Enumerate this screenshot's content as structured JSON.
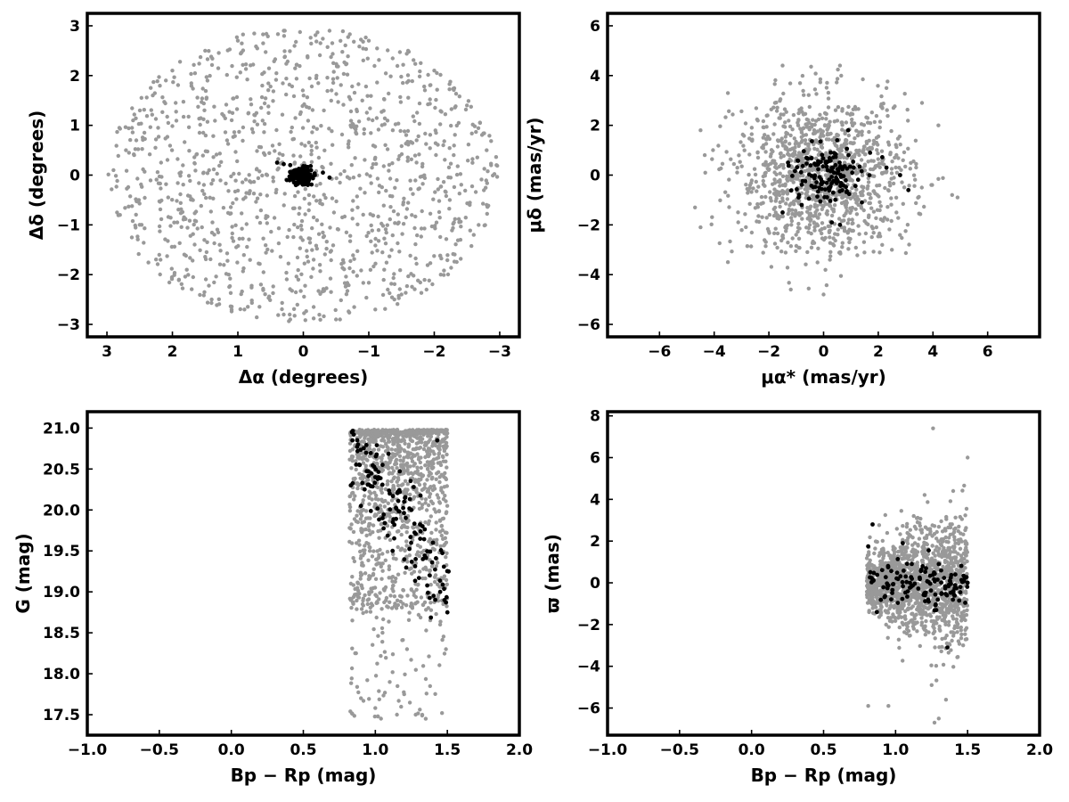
{
  "colors": {
    "field_stars": "#999999",
    "members": "#000000",
    "axes": "#000000"
  },
  "chart_data": [
    {
      "type": "scatter",
      "id": "panel-sky",
      "xlabel": "Δα (degrees)",
      "ylabel": "Δδ (degrees)",
      "xlim": [
        3.3,
        -3.3
      ],
      "ylim": [
        -3.25,
        3.25
      ],
      "x_reversed": true,
      "xticks": [
        3,
        2,
        1,
        0,
        -1,
        -2,
        -3
      ],
      "xtick_labels": [
        "3",
        "2",
        "1",
        "0",
        "−1",
        "−2",
        "−3"
      ],
      "yticks": [
        -3,
        -2,
        -1,
        0,
        1,
        2,
        3
      ],
      "ytick_labels": [
        "−3",
        "−2",
        "−1",
        "0",
        "1",
        "2",
        "3"
      ],
      "grid": false,
      "series": [
        {
          "role": "field",
          "distribution": "uniform disk, radius ≈ 3 deg, ~1200 points",
          "points": [
            [
              2.9,
              0.1
            ],
            [
              2.8,
              -0.8
            ],
            [
              2.6,
              1.1
            ],
            [
              2.5,
              -1.0
            ],
            [
              2.3,
              1.6
            ],
            [
              2.2,
              -1.6
            ],
            [
              2.0,
              2.1
            ],
            [
              1.9,
              -2.1
            ],
            [
              1.5,
              2.5
            ],
            [
              1.4,
              -2.5
            ],
            [
              1.0,
              2.7
            ],
            [
              0.9,
              -2.7
            ],
            [
              0.3,
              2.9
            ],
            [
              0.2,
              -2.9
            ],
            [
              -0.4,
              2.9
            ],
            [
              -0.5,
              -2.9
            ],
            [
              -1.0,
              2.7
            ],
            [
              -1.1,
              -2.7
            ],
            [
              -1.6,
              2.5
            ],
            [
              -1.5,
              -2.4
            ],
            [
              -2.0,
              2.1
            ],
            [
              -2.1,
              -2.0
            ],
            [
              -2.5,
              1.4
            ],
            [
              -2.4,
              -1.3
            ],
            [
              -2.8,
              0.5
            ],
            [
              -2.8,
              -0.6
            ],
            [
              -2.95,
              0.2
            ]
          ]
        },
        {
          "role": "members",
          "distribution": "compact clump centred near (0,0), σ ≈ 0.1 deg, ~150 points",
          "points": [
            [
              0.4,
              0.25
            ],
            [
              0.3,
              0.22
            ],
            [
              0.2,
              0.2
            ],
            [
              0.0,
              0.18
            ],
            [
              -0.3,
              0.05
            ],
            [
              -0.4,
              -0.05
            ],
            [
              0.25,
              -0.1
            ],
            [
              0.1,
              -0.15
            ],
            [
              -0.1,
              -0.05
            ],
            [
              0.05,
              0.05
            ]
          ]
        }
      ]
    },
    {
      "type": "scatter",
      "id": "panel-pm",
      "xlabel": "μα* (mas/yr)",
      "ylabel": "μδ (mas/yr)",
      "xlim": [
        -7.9,
        7.9
      ],
      "ylim": [
        -6.5,
        6.5
      ],
      "xticks": [
        -6,
        -4,
        -2,
        0,
        2,
        4,
        6
      ],
      "xtick_labels": [
        "−6",
        "−4",
        "−2",
        "0",
        "2",
        "4",
        "6"
      ],
      "yticks": [
        -6,
        -4,
        -2,
        0,
        2,
        4,
        6
      ],
      "ytick_labels": [
        "−6",
        "−4",
        "−2",
        "0",
        "2",
        "4",
        "6"
      ],
      "grid": false,
      "series": [
        {
          "role": "field",
          "distribution": "disk centred at (0,0), radius ≈ 4.6 mas/yr, dense core, ~1200 points",
          "points": [
            [
              -4.7,
              -1.3
            ],
            [
              -4.5,
              1.8
            ],
            [
              -4.5,
              -2.1
            ],
            [
              -3.5,
              3.3
            ],
            [
              -3.5,
              -3.5
            ],
            [
              -1.5,
              4.4
            ],
            [
              -1.2,
              -4.6
            ],
            [
              0.6,
              4.4
            ],
            [
              0.0,
              -4.8
            ],
            [
              2.3,
              3.5
            ],
            [
              2.5,
              -3.0
            ],
            [
              3.6,
              2.9
            ],
            [
              4.2,
              2.0
            ],
            [
              4.9,
              -0.9
            ],
            [
              4.7,
              -0.8
            ]
          ]
        },
        {
          "role": "members",
          "distribution": "clump near (0,0), σ ≈ 0.9 mas/yr, ~150 points",
          "points": [
            [
              -1.5,
              -1.5
            ],
            [
              -1.3,
              0.5
            ],
            [
              -0.8,
              -1.2
            ],
            [
              0.3,
              -1.9
            ],
            [
              0.5,
              -0.2
            ],
            [
              0.5,
              1.4
            ],
            [
              0.6,
              -2.0
            ],
            [
              0.9,
              1.8
            ],
            [
              1.1,
              0.3
            ],
            [
              1.4,
              -1.1
            ],
            [
              1.7,
              0.9
            ],
            [
              2.3,
              0.3
            ],
            [
              2.8,
              0.0
            ],
            [
              3.1,
              -0.6
            ]
          ]
        }
      ]
    },
    {
      "type": "scatter",
      "id": "panel-cmd",
      "xlabel": "Bp − Rp (mag)",
      "ylabel": "G (mag)",
      "xlim": [
        -1.0,
        2.0
      ],
      "ylim": [
        17.25,
        21.2
      ],
      "xticks": [
        -1.0,
        -0.5,
        0.0,
        0.5,
        1.0,
        1.5,
        2.0
      ],
      "xtick_labels": [
        "−1.0",
        "−0.5",
        "0.0",
        "0.5",
        "1.0",
        "1.5",
        "2.0"
      ],
      "yticks": [
        17.5,
        18.0,
        18.5,
        19.0,
        19.5,
        20.0,
        20.5,
        21.0
      ],
      "ytick_labels": [
        "17.5",
        "18.0",
        "18.5",
        "19.0",
        "19.5",
        "20.0",
        "20.5",
        "21.0"
      ],
      "grid": false,
      "series": [
        {
          "role": "field",
          "distribution": "Bp−Rp 0.82–1.50, G 17.4–21.0, dense near G 19.5–21.0, ~1200 points",
          "points": [
            [
              0.84,
              18.65
            ],
            [
              0.86,
              18.25
            ],
            [
              0.9,
              17.7
            ],
            [
              1.05,
              18.5
            ],
            [
              1.1,
              17.9
            ],
            [
              1.15,
              17.5
            ],
            [
              1.2,
              17.75
            ],
            [
              1.22,
              18.3
            ],
            [
              1.28,
              17.5
            ],
            [
              1.35,
              17.45
            ],
            [
              1.38,
              17.85
            ],
            [
              1.45,
              18.6
            ],
            [
              1.49,
              18.3
            ]
          ]
        },
        {
          "role": "members",
          "distribution": "diagonal sequence from (0.85, 20.9) to (1.5, 18.75), ~150 points",
          "points": [
            [
              0.83,
              20.3
            ],
            [
              0.85,
              20.92
            ],
            [
              0.88,
              20.8
            ],
            [
              0.9,
              20.05
            ],
            [
              1.0,
              20.4
            ],
            [
              1.05,
              20.55
            ],
            [
              1.05,
              19.9
            ],
            [
              1.1,
              20.2
            ],
            [
              1.12,
              19.5
            ],
            [
              1.2,
              20.1
            ],
            [
              1.25,
              20.0
            ],
            [
              1.28,
              19.4
            ],
            [
              1.33,
              19.4
            ],
            [
              1.4,
              19.6
            ],
            [
              1.43,
              20.85
            ],
            [
              1.45,
              19.0
            ],
            [
              1.48,
              18.9
            ],
            [
              1.5,
              18.75
            ]
          ]
        }
      ]
    },
    {
      "type": "scatter",
      "id": "panel-plx",
      "xlabel": "Bp − Rp (mag)",
      "ylabel": "ϖ (mas)",
      "xlim": [
        -1.0,
        2.0
      ],
      "ylim": [
        -7.3,
        8.2
      ],
      "xticks": [
        -1.0,
        -0.5,
        0.0,
        0.5,
        1.0,
        1.5,
        2.0
      ],
      "xtick_labels": [
        "−1.0",
        "−0.5",
        "0.0",
        "0.5",
        "1.0",
        "1.5",
        "2.0"
      ],
      "yticks": [
        -6,
        -4,
        -2,
        0,
        2,
        4,
        6,
        8
      ],
      "ytick_labels": [
        "−6",
        "−4",
        "−2",
        "0",
        "2",
        "4",
        "6",
        "8"
      ],
      "grid": false,
      "series": [
        {
          "role": "field",
          "distribution": "Bp−Rp 0.8–1.5, ϖ centred on 0 with scatter growing redward, ~1200 points",
          "points": [
            [
              0.81,
              -5.9
            ],
            [
              0.95,
              -5.9
            ],
            [
              1.26,
              7.4
            ],
            [
              1.27,
              -6.7
            ],
            [
              1.3,
              -6.5
            ],
            [
              1.35,
              -5.6
            ],
            [
              1.25,
              -4.9
            ],
            [
              1.5,
              6.0
            ],
            [
              1.4,
              4.4
            ]
          ]
        },
        {
          "role": "members",
          "distribution": "band ϖ ≈ 0 ± 1 across Bp−Rp 0.8–1.5, ~150 points",
          "points": [
            [
              0.81,
              1.75
            ],
            [
              0.84,
              2.8
            ],
            [
              0.87,
              -1.4
            ],
            [
              1.05,
              1.9
            ],
            [
              1.1,
              0.0
            ],
            [
              1.2,
              -0.5
            ],
            [
              1.23,
              1.55
            ],
            [
              1.3,
              0.9
            ],
            [
              1.36,
              -3.1
            ],
            [
              1.45,
              -0.2
            ],
            [
              1.5,
              0.0
            ]
          ]
        }
      ]
    }
  ]
}
